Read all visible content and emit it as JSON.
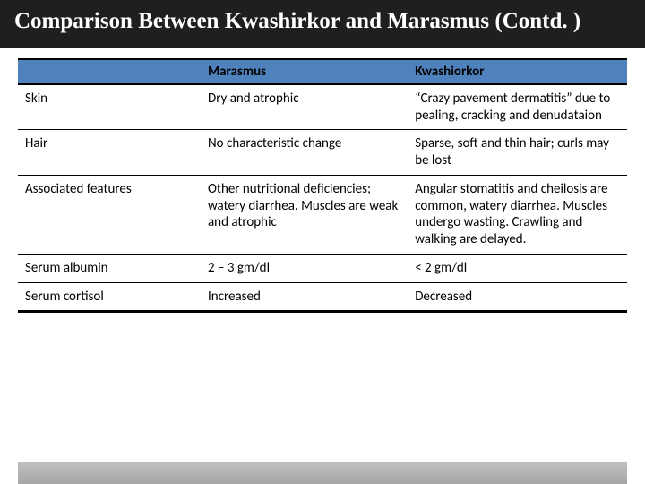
{
  "title": "Comparison Between Kwashirkor and Marasmus (Contd. )",
  "table": {
    "columns": [
      "",
      "Marasmus",
      "Kwashiorkor"
    ],
    "col_widths": [
      "30%",
      "34%",
      "36%"
    ],
    "header_bg": "#4f81bd",
    "header_text_color": "#000000",
    "border_color": "#000000",
    "fontsize": 15,
    "rows": [
      [
        "Skin",
        "Dry and atrophic",
        "“Crazy pavement dermatitis” due to pealing, cracking and denudataion"
      ],
      [
        "Hair",
        "No characteristic change",
        "Sparse, soft and thin hair; curls may be lost"
      ],
      [
        "Associated features",
        "Other nutritional deficiencies; watery diarrhea. Muscles are weak and atrophic",
        "Angular stomatitis and cheilosis are common, watery diarrhea. Muscles undergo wasting. Crawling and walking are delayed."
      ],
      [
        "Serum albumin",
        "2 – 3 gm/dl",
        "< 2 gm/dl"
      ],
      [
        "Serum cortisol",
        "Increased",
        "Decreased"
      ]
    ]
  },
  "title_style": {
    "bg_color": "#1f1f1f",
    "text_color": "#ffffff",
    "font_family": "Times New Roman",
    "font_weight": "bold",
    "font_size_pt": 25
  },
  "footer_bar_color": "#b0b0b0"
}
